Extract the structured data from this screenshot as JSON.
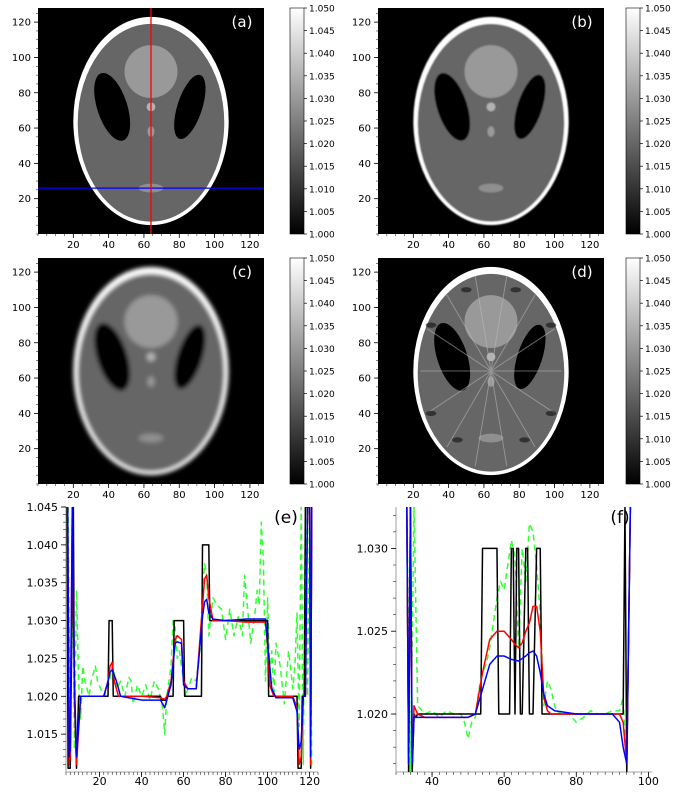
{
  "chart_data": [
    {
      "id": "a",
      "type": "heatmap",
      "panel_label": "(a)",
      "xlim": [
        0,
        128
      ],
      "ylim": [
        0,
        128
      ],
      "x_ticks": [
        20,
        40,
        60,
        80,
        100,
        120
      ],
      "y_ticks": [
        20,
        40,
        60,
        80,
        100,
        120
      ],
      "colorbar": {
        "min": 1.0,
        "max": 1.05,
        "ticks": [
          "1.000",
          "1.005",
          "1.010",
          "1.015",
          "1.020",
          "1.025",
          "1.030",
          "1.035",
          "1.040",
          "1.045",
          "1.050"
        ]
      },
      "overlay": {
        "vertical_line_x": 64,
        "vertical_line_color": "#ff0000",
        "horizontal_line_y": 26,
        "horizontal_line_color": "#0000ff"
      },
      "style": "sharp"
    },
    {
      "id": "b",
      "type": "heatmap",
      "panel_label": "(b)",
      "xlim": [
        0,
        128
      ],
      "ylim": [
        0,
        128
      ],
      "x_ticks": [
        20,
        40,
        60,
        80,
        100,
        120
      ],
      "y_ticks": [
        20,
        40,
        60,
        80,
        100,
        120
      ],
      "colorbar": {
        "min": 1.0,
        "max": 1.05,
        "ticks": [
          "1.000",
          "1.005",
          "1.010",
          "1.015",
          "1.020",
          "1.025",
          "1.030",
          "1.035",
          "1.040",
          "1.045",
          "1.050"
        ]
      },
      "style": "smooth"
    },
    {
      "id": "c",
      "type": "heatmap",
      "panel_label": "(c)",
      "xlim": [
        0,
        128
      ],
      "ylim": [
        0,
        128
      ],
      "x_ticks": [
        20,
        40,
        60,
        80,
        100,
        120
      ],
      "y_ticks": [
        20,
        40,
        60,
        80,
        100,
        120
      ],
      "colorbar": {
        "min": 1.0,
        "max": 1.05,
        "ticks": [
          "1.000",
          "1.005",
          "1.010",
          "1.015",
          "1.020",
          "1.025",
          "1.030",
          "1.035",
          "1.040",
          "1.045",
          "1.050"
        ]
      },
      "style": "blurred"
    },
    {
      "id": "d",
      "type": "heatmap",
      "panel_label": "(d)",
      "xlim": [
        0,
        128
      ],
      "ylim": [
        0,
        128
      ],
      "x_ticks": [
        20,
        40,
        60,
        80,
        100,
        120
      ],
      "y_ticks": [
        20,
        40,
        60,
        80,
        100,
        120
      ],
      "colorbar": {
        "min": 1.0,
        "max": 1.05,
        "ticks": [
          "1.000",
          "1.005",
          "1.010",
          "1.015",
          "1.020",
          "1.025",
          "1.030",
          "1.035",
          "1.040",
          "1.045",
          "1.050"
        ]
      },
      "style": "streaks"
    },
    {
      "id": "e",
      "type": "line",
      "panel_label": "(e)",
      "xlim": [
        4,
        124
      ],
      "ylim": [
        1.01,
        1.045
      ],
      "x_ticks": [
        20,
        40,
        60,
        80,
        100,
        120
      ],
      "y_ticks": [
        1.015,
        1.02,
        1.025,
        1.03,
        1.035,
        1.04,
        1.045
      ],
      "y_tick_labels": [
        "1.015",
        "1.020",
        "1.025",
        "1.030",
        "1.035",
        "1.040",
        "1.045"
      ],
      "series": [
        {
          "color": "#000000",
          "dash": "",
          "x": [
            4.5,
            5,
            6,
            7.5,
            8,
            9,
            10,
            24,
            24.5,
            26,
            26.5,
            30,
            35,
            49,
            49.5,
            51.5,
            52,
            55,
            55.5,
            60,
            60.5,
            68.5,
            69,
            72,
            72.5,
            75,
            80,
            85,
            95,
            100,
            100.5,
            114,
            114.5,
            116,
            116.5,
            117,
            117.5,
            118,
            120,
            120.5,
            121
          ],
          "y": [
            1.045,
            1.0105,
            1.0105,
            1.045,
            1.02,
            1.0105,
            1.02,
            1.02,
            1.03,
            1.03,
            1.02,
            1.02,
            1.02,
            1.02,
            1.0195,
            1.0195,
            1.02,
            1.02,
            1.03,
            1.03,
            1.02,
            1.02,
            1.04,
            1.04,
            1.03,
            1.03,
            1.03,
            1.03,
            1.03,
            1.03,
            1.02,
            1.02,
            1.0105,
            1.0105,
            1.02,
            1.02,
            1.02,
            1.045,
            1.045,
            1.0105,
            1.045
          ]
        },
        {
          "color": "#ff0000",
          "dash": "",
          "x": [
            4.8,
            5.5,
            6,
            7,
            8,
            9,
            11,
            22,
            24,
            25,
            26,
            27,
            29,
            40,
            49,
            51,
            52,
            54,
            56,
            57,
            59,
            60,
            62,
            66,
            69,
            70,
            71,
            72,
            74,
            80,
            90,
            99,
            100.5,
            101,
            103,
            112,
            114,
            115,
            116,
            117,
            118,
            119,
            120,
            120.5,
            121
          ],
          "y": [
            1.045,
            1.011,
            1.012,
            1.045,
            1.021,
            1.011,
            1.02,
            1.02,
            1.022,
            1.024,
            1.0245,
            1.022,
            1.02,
            1.02,
            1.0198,
            1.0196,
            1.02,
            1.022,
            1.0275,
            1.028,
            1.0275,
            1.022,
            1.021,
            1.021,
            1.032,
            1.0355,
            1.036,
            1.033,
            1.03,
            1.03,
            1.0298,
            1.0298,
            1.025,
            1.0215,
            1.02,
            1.02,
            1.0185,
            1.011,
            1.012,
            1.02,
            1.02,
            1.045,
            1.045,
            1.011,
            1.045
          ]
        },
        {
          "color": "#0000ff",
          "dash": "",
          "x": [
            4.8,
            5.5,
            6,
            7,
            8,
            9,
            11,
            22,
            24,
            25,
            26,
            28,
            30,
            40,
            49,
            51,
            52,
            54,
            56,
            57,
            59,
            60,
            62,
            66,
            69,
            70,
            71,
            72,
            74,
            80,
            90,
            99,
            101,
            102,
            104,
            112,
            114,
            115,
            116,
            117,
            118,
            119,
            120,
            120.5,
            121
          ],
          "y": [
            1.045,
            1.012,
            1.013,
            1.045,
            1.022,
            1.012,
            1.02,
            1.02,
            1.022,
            1.0232,
            1.0235,
            1.022,
            1.02,
            1.0195,
            1.0195,
            1.0185,
            1.0195,
            1.0215,
            1.027,
            1.0272,
            1.027,
            1.0215,
            1.021,
            1.021,
            1.0305,
            1.0325,
            1.0328,
            1.031,
            1.0302,
            1.03,
            1.0302,
            1.0302,
            1.024,
            1.021,
            1.0198,
            1.0198,
            1.018,
            1.013,
            1.014,
            1.02,
            1.02,
            1.045,
            1.045,
            1.012,
            1.045
          ]
        },
        {
          "color": "#33ff33",
          "dash": "6 4",
          "x": [
            5,
            6,
            7,
            8,
            9,
            10,
            11,
            12,
            13,
            15,
            16,
            18,
            19,
            22,
            24,
            25,
            26,
            27,
            28,
            30,
            32,
            34,
            35,
            36,
            38,
            40,
            42,
            44,
            46,
            48,
            50,
            51,
            52,
            54,
            55,
            56,
            57,
            58,
            60,
            61,
            62,
            64,
            66,
            68,
            69,
            70,
            71,
            72,
            74,
            76,
            78,
            80,
            82,
            84,
            86,
            88,
            89,
            90,
            91,
            92,
            94,
            95,
            96,
            97,
            98,
            99,
            100,
            101,
            102,
            103,
            104,
            106,
            108,
            110,
            112,
            113,
            114,
            115,
            116,
            117,
            118,
            119,
            120,
            121
          ],
          "y": [
            1.045,
            1.011,
            1.045,
            1.013,
            1.034,
            1.022,
            1.017,
            1.024,
            1.022,
            1.02,
            1.022,
            1.024,
            1.022,
            1.02,
            1.021,
            1.0225,
            1.024,
            1.023,
            1.021,
            1.022,
            1.02,
            1.0225,
            1.022,
            1.019,
            1.0215,
            1.02,
            1.0215,
            1.0195,
            1.022,
            1.021,
            1.0185,
            1.015,
            1.02,
            1.024,
            1.03,
            1.029,
            1.025,
            1.026,
            1.022,
            1.02,
            1.021,
            1.0225,
            1.022,
            1.0265,
            1.034,
            1.0375,
            1.036,
            1.028,
            1.033,
            1.032,
            1.0315,
            1.0275,
            1.0315,
            1.028,
            1.0305,
            1.028,
            1.036,
            1.033,
            1.03,
            1.027,
            1.031,
            1.034,
            1.032,
            1.043,
            1.038,
            1.022,
            1.033,
            1.023,
            1.026,
            1.02,
            1.027,
            1.024,
            1.019,
            1.026,
            1.021,
            1.024,
            1.031,
            1.016,
            1.045,
            1.011,
            1.045,
            1.02,
            1.045,
            1.011
          ]
        }
      ]
    },
    {
      "id": "f",
      "type": "line",
      "panel_label": "(f)",
      "xlim": [
        30,
        101
      ],
      "ylim": [
        1.0165,
        1.0325
      ],
      "x_ticks": [
        40,
        60,
        80,
        100
      ],
      "y_ticks": [
        1.02,
        1.025,
        1.03
      ],
      "y_tick_labels": [
        "1.020",
        "1.025",
        "1.030"
      ],
      "series": [
        {
          "color": "#000000",
          "dash": "",
          "x": [
            33,
            33.5,
            34,
            34.5,
            35,
            35.5,
            36,
            50,
            53.5,
            54,
            58,
            58.5,
            61.5,
            62,
            62.5,
            63,
            63.5,
            64,
            64.5,
            65,
            66,
            66.5,
            67,
            68,
            69,
            70,
            70.5,
            71,
            80,
            93,
            93.5,
            94,
            95
          ],
          "y": [
            1.0325,
            1.0165,
            1.0325,
            1.0165,
            1.02,
            1.0198,
            1.02,
            1.02,
            1.02,
            1.03,
            1.03,
            1.02,
            1.02,
            1.03,
            1.03,
            1.02,
            1.03,
            1.03,
            1.02,
            1.02,
            1.03,
            1.03,
            1.02,
            1.02,
            1.03,
            1.03,
            1.02,
            1.02,
            1.02,
            1.02,
            1.0325,
            1.0165,
            1.0325
          ]
        },
        {
          "color": "#ff0000",
          "dash": "",
          "x": [
            33,
            33.5,
            34,
            34.5,
            35,
            36,
            38,
            50,
            52,
            54,
            56,
            58,
            60,
            62,
            63,
            64,
            65,
            66,
            67,
            68,
            69,
            70,
            71,
            72,
            73,
            80,
            92,
            93,
            94,
            95
          ],
          "y": [
            1.0325,
            1.017,
            1.0325,
            1.017,
            1.0205,
            1.02,
            1.0198,
            1.0198,
            1.02,
            1.0225,
            1.0245,
            1.025,
            1.025,
            1.0245,
            1.0242,
            1.024,
            1.0243,
            1.025,
            1.0255,
            1.0265,
            1.0265,
            1.025,
            1.021,
            1.0202,
            1.02,
            1.02,
            1.02,
            1.0195,
            1.017,
            1.0325
          ]
        },
        {
          "color": "#0000ff",
          "dash": "",
          "x": [
            33,
            33.5,
            34,
            34.5,
            35,
            36,
            38,
            50,
            52,
            54,
            56,
            58,
            60,
            62,
            64,
            66,
            67,
            68,
            69,
            70,
            71,
            72,
            74,
            80,
            90,
            92,
            93,
            94,
            95
          ],
          "y": [
            1.0325,
            1.017,
            1.0325,
            1.017,
            1.0198,
            1.0198,
            1.0198,
            1.0198,
            1.02,
            1.0215,
            1.023,
            1.0235,
            1.0235,
            1.0233,
            1.0232,
            1.0235,
            1.0237,
            1.0238,
            1.0235,
            1.0225,
            1.0212,
            1.0205,
            1.0202,
            1.02,
            1.02,
            1.0195,
            1.018,
            1.017,
            1.0325
          ]
        },
        {
          "color": "#33ff33",
          "dash": "6 4",
          "x": [
            33,
            34,
            35,
            36,
            38,
            40,
            42,
            44,
            46,
            48,
            49,
            50,
            51,
            52,
            53,
            54,
            55,
            56,
            57,
            58,
            59,
            60,
            61,
            62,
            63,
            64,
            65,
            66,
            67,
            68,
            69,
            70,
            71,
            72,
            73,
            74,
            75,
            76,
            78,
            80,
            82,
            84,
            86,
            88,
            90,
            92,
            93,
            94,
            95
          ],
          "y": [
            1.0325,
            1.0165,
            1.0325,
            1.0205,
            1.02,
            1.0202,
            1.0198,
            1.0202,
            1.02,
            1.02,
            1.0195,
            1.0185,
            1.0195,
            1.0198,
            1.0215,
            1.0225,
            1.023,
            1.024,
            1.0255,
            1.027,
            1.028,
            1.0275,
            1.029,
            1.0305,
            1.0295,
            1.024,
            1.03,
            1.028,
            1.0315,
            1.031,
            1.029,
            1.026,
            1.0205,
            1.022,
            1.0215,
            1.0205,
            1.02,
            1.0202,
            1.02,
            1.0195,
            1.0198,
            1.0202,
            1.02,
            1.02,
            1.0202,
            1.0202,
            1.021,
            1.0165,
            1.0325
          ]
        }
      ]
    }
  ]
}
